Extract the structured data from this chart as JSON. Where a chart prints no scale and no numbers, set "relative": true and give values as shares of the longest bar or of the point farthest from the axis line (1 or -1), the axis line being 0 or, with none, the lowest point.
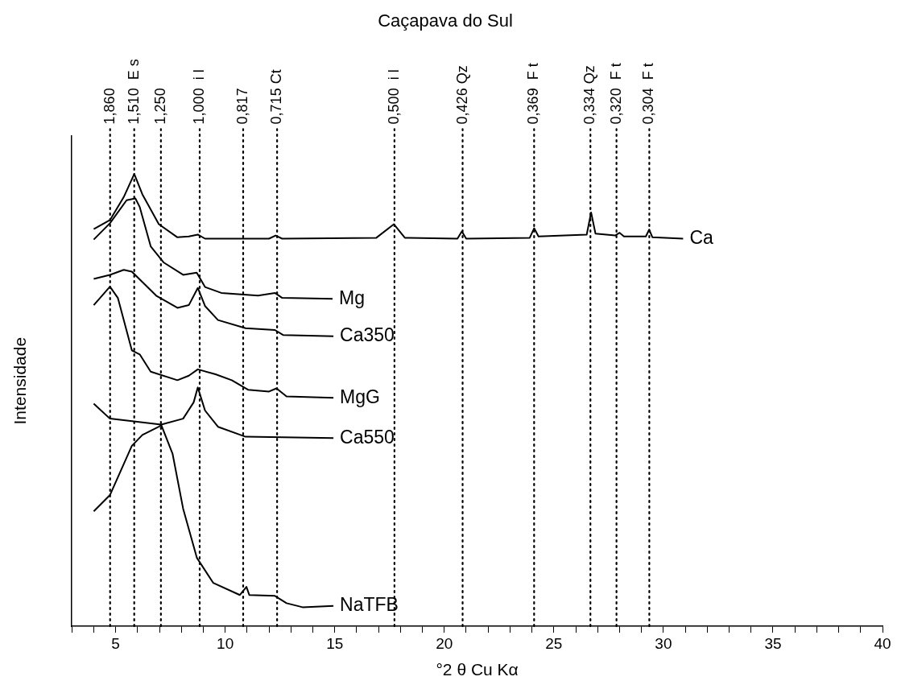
{
  "chart_data": {
    "type": "line",
    "title": "Caçapava do Sul",
    "xlabel": "°2 θ Cu Kα",
    "ylabel": "Intensidade",
    "relative": true,
    "grid": false,
    "legend": false,
    "marker": "none",
    "line_style": "solid",
    "xlim": [
      3,
      40
    ],
    "xticks": [
      {
        "value": 3,
        "label": null
      },
      {
        "value": 4,
        "label": null
      },
      5,
      {
        "value": 6,
        "label": null
      },
      {
        "value": 7,
        "label": null
      },
      {
        "value": 8,
        "label": null
      },
      {
        "value": 9,
        "label": null
      },
      10,
      {
        "value": 11,
        "label": null
      },
      {
        "value": 12,
        "label": null
      },
      {
        "value": 13,
        "label": null
      },
      {
        "value": 14,
        "label": null
      },
      15,
      {
        "value": 16,
        "label": null
      },
      {
        "value": 17,
        "label": null
      },
      {
        "value": 18,
        "label": null
      },
      {
        "value": 19,
        "label": null
      },
      20,
      {
        "value": 21,
        "label": null
      },
      {
        "value": 22,
        "label": null
      },
      {
        "value": 23,
        "label": null
      },
      {
        "value": 24,
        "label": null
      },
      25,
      {
        "value": 26,
        "label": null
      },
      {
        "value": 27,
        "label": null
      },
      {
        "value": 28,
        "label": null
      },
      {
        "value": 29,
        "label": null
      },
      30,
      {
        "value": 31,
        "label": null
      },
      {
        "value": 32,
        "label": null
      },
      {
        "value": 33,
        "label": null
      },
      {
        "value": 34,
        "label": null
      },
      35,
      {
        "value": 36,
        "label": null
      },
      {
        "value": 37,
        "label": null
      },
      {
        "value": 38,
        "label": null
      },
      {
        "value": 39,
        "label": null
      },
      40
    ],
    "series": [
      {
        "name": "Ca",
        "color": "#000000",
        "x": [
          4.0,
          4.74,
          5.37,
          5.85,
          6.22,
          6.97,
          7.82,
          8.34,
          8.75,
          9.08,
          12.0,
          12.3,
          12.6,
          16.9,
          17.7,
          18.2,
          20.6,
          20.8,
          21.0,
          23.9,
          24.1,
          24.3,
          25.5,
          26.5,
          26.7,
          26.9,
          27.8,
          28.0,
          28.2,
          29.2,
          29.35,
          29.5,
          30.9
        ],
        "values": [
          0.878,
          0.898,
          0.949,
          1,
          0.955,
          0.889,
          0.86,
          0.862,
          0.866,
          0.857,
          0.857,
          0.864,
          0.857,
          0.859,
          0.889,
          0.859,
          0.857,
          0.873,
          0.857,
          0.859,
          0.88,
          0.862,
          0.864,
          0.866,
          0.915,
          0.868,
          0.864,
          0.87,
          0.862,
          0.862,
          0.877,
          0.86,
          0.857
        ]
      },
      {
        "name": "Mg",
        "color": "#000000",
        "x": [
          4.0,
          4.74,
          5.5,
          5.9,
          6.1,
          6.6,
          7.2,
          8.08,
          8.7,
          9.08,
          9.82,
          11.5,
          12.27,
          12.6,
          14.9
        ],
        "values": [
          0.855,
          0.891,
          0.942,
          0.946,
          0.927,
          0.84,
          0.804,
          0.777,
          0.782,
          0.75,
          0.737,
          0.731,
          0.737,
          0.726,
          0.724
        ]
      },
      {
        "name": "Ca350",
        "color": "#000000",
        "x": [
          4.0,
          4.74,
          5.37,
          5.74,
          6.85,
          7.82,
          8.34,
          8.75,
          9.08,
          9.67,
          10.93,
          12.27,
          12.64,
          14.94
        ],
        "values": [
          0.768,
          0.777,
          0.788,
          0.784,
          0.731,
          0.704,
          0.71,
          0.748,
          0.708,
          0.677,
          0.659,
          0.655,
          0.644,
          0.641
        ]
      },
      {
        "name": "MgG",
        "color": "#000000",
        "x": [
          4.0,
          4.74,
          5.1,
          5.74,
          6.1,
          6.6,
          7.82,
          8.34,
          8.75,
          9.56,
          10.3,
          11.04,
          12.0,
          12.34,
          12.8,
          14.94
        ],
        "values": [
          0.71,
          0.751,
          0.726,
          0.61,
          0.601,
          0.563,
          0.544,
          0.554,
          0.568,
          0.557,
          0.544,
          0.523,
          0.519,
          0.526,
          0.508,
          0.505
        ]
      },
      {
        "name": "Ca550",
        "color": "#000000",
        "x": [
          4.0,
          4.74,
          7.08,
          8.08,
          8.56,
          8.75,
          9.08,
          9.67,
          10.93,
          14.94
        ],
        "values": [
          0.492,
          0.459,
          0.446,
          0.459,
          0.495,
          0.528,
          0.477,
          0.441,
          0.419,
          0.416
        ]
      },
      {
        "name": "NaTFB",
        "color": "#000000",
        "x": [
          4.0,
          4.74,
          5.74,
          6.22,
          6.97,
          7.08,
          7.6,
          8.08,
          8.71,
          9.45,
          10.67,
          10.97,
          11.1,
          12.27,
          12.8,
          13.53,
          14.94
        ],
        "values": [
          0.254,
          0.29,
          0.399,
          0.423,
          0.441,
          0.445,
          0.381,
          0.26,
          0.151,
          0.096,
          0.069,
          0.087,
          0.069,
          0.067,
          0.051,
          0.042,
          0.045
        ]
      }
    ],
    "ref_lines": [
      {
        "axis": "x",
        "value": 4.747,
        "line_style": "dotted",
        "color": "#000000"
      },
      {
        "axis": "x",
        "value": 5.848,
        "line_style": "dotted",
        "color": "#000000"
      },
      {
        "axis": "x",
        "value": 7.066,
        "line_style": "dotted",
        "color": "#000000"
      },
      {
        "axis": "x",
        "value": 8.836,
        "line_style": "dotted",
        "color": "#000000"
      },
      {
        "axis": "x",
        "value": 10.82,
        "line_style": "dotted",
        "color": "#000000"
      },
      {
        "axis": "x",
        "value": 12.369,
        "line_style": "dotted",
        "color": "#000000"
      },
      {
        "axis": "x",
        "value": 17.725,
        "line_style": "dotted",
        "color": "#000000"
      },
      {
        "axis": "x",
        "value": 20.836,
        "line_style": "dotted",
        "color": "#000000"
      },
      {
        "axis": "x",
        "value": 24.099,
        "line_style": "dotted",
        "color": "#000000"
      },
      {
        "axis": "x",
        "value": 26.669,
        "line_style": "dotted",
        "color": "#000000"
      },
      {
        "axis": "x",
        "value": 27.859,
        "line_style": "dotted",
        "color": "#000000"
      },
      {
        "axis": "x",
        "value": 29.357,
        "line_style": "dotted",
        "color": "#000000"
      }
    ],
    "annotations": [
      "1,860",
      "1,510  E s",
      "1,250",
      "1,000  i l",
      "0,817",
      "0,715 Ct",
      "0,500  i l",
      "0,426 Qz",
      "0,369  F t",
      "0,334 Qz",
      "0,320  F t",
      "0,304  F t"
    ]
  }
}
